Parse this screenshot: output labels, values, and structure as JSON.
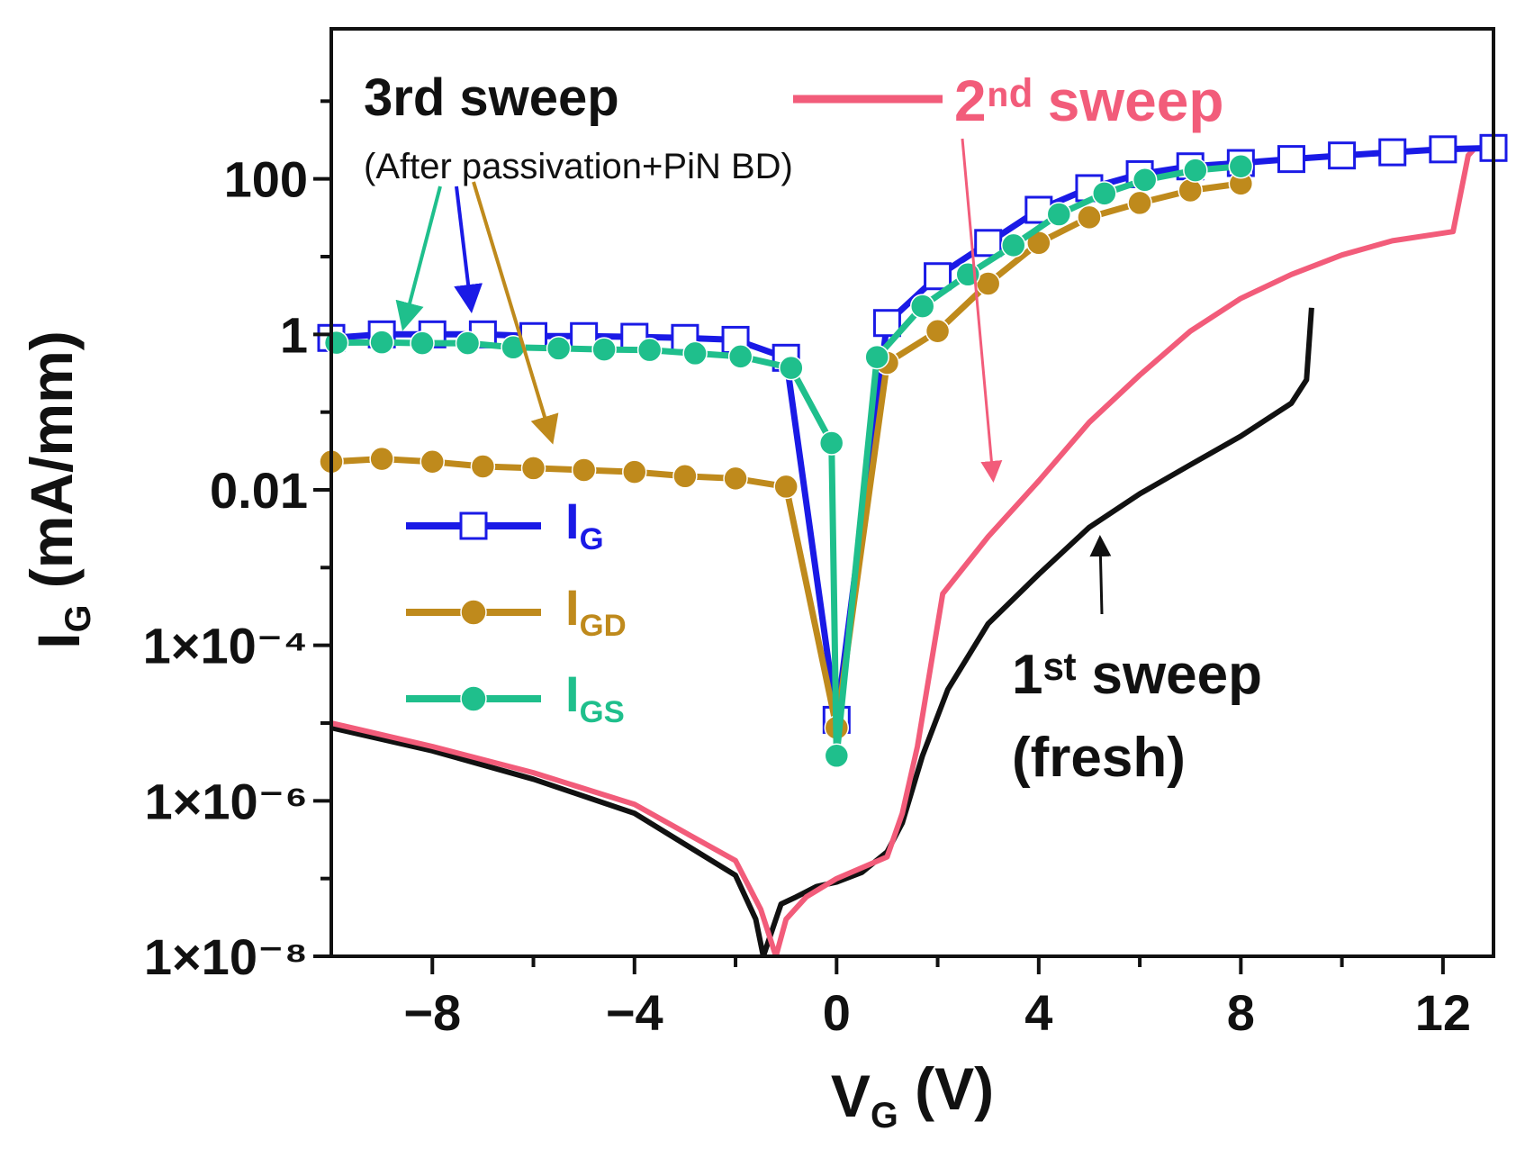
{
  "chart_data": {
    "type": "line",
    "xlabel": [
      "V",
      "G",
      " (V)"
    ],
    "ylabel": [
      "I",
      "G",
      " (mA/mm)"
    ],
    "log_y": true,
    "xlim": [
      -10,
      13
    ],
    "ylim": [
      1e-08,
      10000
    ],
    "xticks": [
      {
        "value": -8,
        "label": "−8"
      },
      {
        "value": -4,
        "label": "−4"
      },
      0,
      4,
      8,
      12
    ],
    "xticks_minor": [
      -6,
      -2,
      2,
      6,
      10
    ],
    "yticks": [
      {
        "value": 1e-08,
        "label": "1×10⁻⁸"
      },
      {
        "value": 1e-06,
        "label": "1×10⁻⁶"
      },
      {
        "value": 0.0001,
        "label": "1×10⁻⁴"
      },
      0.01,
      1,
      100
    ],
    "yticks_minor": [
      1e-07,
      1e-05,
      0.001,
      0.1,
      10,
      1000
    ],
    "annotations": [
      "3rd sweep",
      "(After passivation+PiN BD)",
      "2ⁿᵈ sweep",
      "1ˢᵗ sweep",
      "(fresh)"
    ],
    "series": [
      {
        "name": "1st sweep (fresh)",
        "legend": false,
        "color": "#111111",
        "marker": "none",
        "x": [
          -10,
          -8,
          -6,
          -4,
          -2,
          -1.6,
          -1.45,
          -1.1,
          -0.8,
          -0.4,
          0,
          0.5,
          1.0,
          1.3,
          1.7,
          2.2,
          3,
          4,
          5,
          6,
          7,
          8,
          9,
          9.3,
          9.4
        ],
        "values": [
          8.7e-06,
          4.4e-06,
          1.9e-06,
          6.9e-07,
          1.1e-07,
          3e-08,
          1e-08,
          4.7e-08,
          5.8e-08,
          7.9e-08,
          9e-08,
          1.2e-07,
          2.2e-07,
          5.2e-07,
          3.8e-06,
          2.7e-05,
          0.00019,
          0.00082,
          0.0033,
          0.0089,
          0.021,
          0.049,
          0.13,
          0.26,
          2.2
        ]
      },
      {
        "name": "2nd sweep",
        "legend": false,
        "color": "#f25c7a",
        "marker": "none",
        "x": [
          -10,
          -8,
          -6,
          -4,
          -2,
          -1.5,
          -1.2,
          -1.0,
          -0.6,
          0,
          1,
          1.3,
          1.6,
          2.1,
          3,
          4,
          5,
          6,
          7,
          8,
          9,
          10,
          11,
          12.2,
          12.5,
          12.6
        ],
        "values": [
          1e-05,
          5e-06,
          2.3e-06,
          9e-07,
          1.7e-07,
          4e-08,
          1e-08,
          3e-08,
          5.8e-08,
          1e-07,
          1.9e-07,
          6.9e-07,
          5e-06,
          0.00046,
          0.0025,
          0.013,
          0.074,
          0.3,
          1.1,
          2.9,
          5.9,
          10.5,
          16,
          21,
          200,
          235
        ]
      },
      {
        "name": "IG",
        "legend": true,
        "color": "#1a1ae6",
        "marker": "square",
        "x": [
          -10,
          -9,
          -8,
          -7,
          -6,
          -5,
          -4,
          -3,
          -2,
          -1,
          0,
          1,
          2,
          3,
          4,
          5,
          6,
          7,
          8,
          9,
          10,
          11,
          12,
          13
        ],
        "values": [
          0.9,
          1,
          1,
          1,
          0.95,
          0.95,
          0.93,
          0.9,
          0.85,
          0.5,
          1.1e-05,
          1.4,
          5.6,
          15,
          40,
          76,
          115,
          145,
          160,
          180,
          200,
          220,
          240,
          250
        ]
      },
      {
        "name": "IGD",
        "legend": true,
        "color": "#bf8a1c",
        "marker": "circle",
        "x": [
          -10,
          -9,
          -8,
          -7,
          -6,
          -5,
          -4,
          -3,
          -2,
          -1,
          0,
          1,
          2,
          3,
          4,
          5,
          6,
          7,
          8
        ],
        "values": [
          0.023,
          0.025,
          0.023,
          0.02,
          0.019,
          0.018,
          0.017,
          0.015,
          0.014,
          0.011,
          8.7e-06,
          0.43,
          1.1,
          4.5,
          15,
          32,
          49,
          71,
          87
        ]
      },
      {
        "name": "IGS",
        "legend": true,
        "color": "#1fbf8c",
        "marker": "circle",
        "x": [
          -9.9,
          -9.0,
          -8.2,
          -7.3,
          -6.4,
          -5.5,
          -4.6,
          -3.7,
          -2.8,
          -1.9,
          -0.9,
          -0.1,
          0,
          0.8,
          1.7,
          2.6,
          3.5,
          4.4,
          5.3,
          6.1,
          7.1,
          8.0
        ],
        "values": [
          0.78,
          0.79,
          0.77,
          0.77,
          0.68,
          0.66,
          0.64,
          0.63,
          0.57,
          0.52,
          0.37,
          0.04,
          3.8e-06,
          0.51,
          2.3,
          5.9,
          14,
          35,
          65,
          97,
          129,
          145
        ]
      }
    ]
  }
}
